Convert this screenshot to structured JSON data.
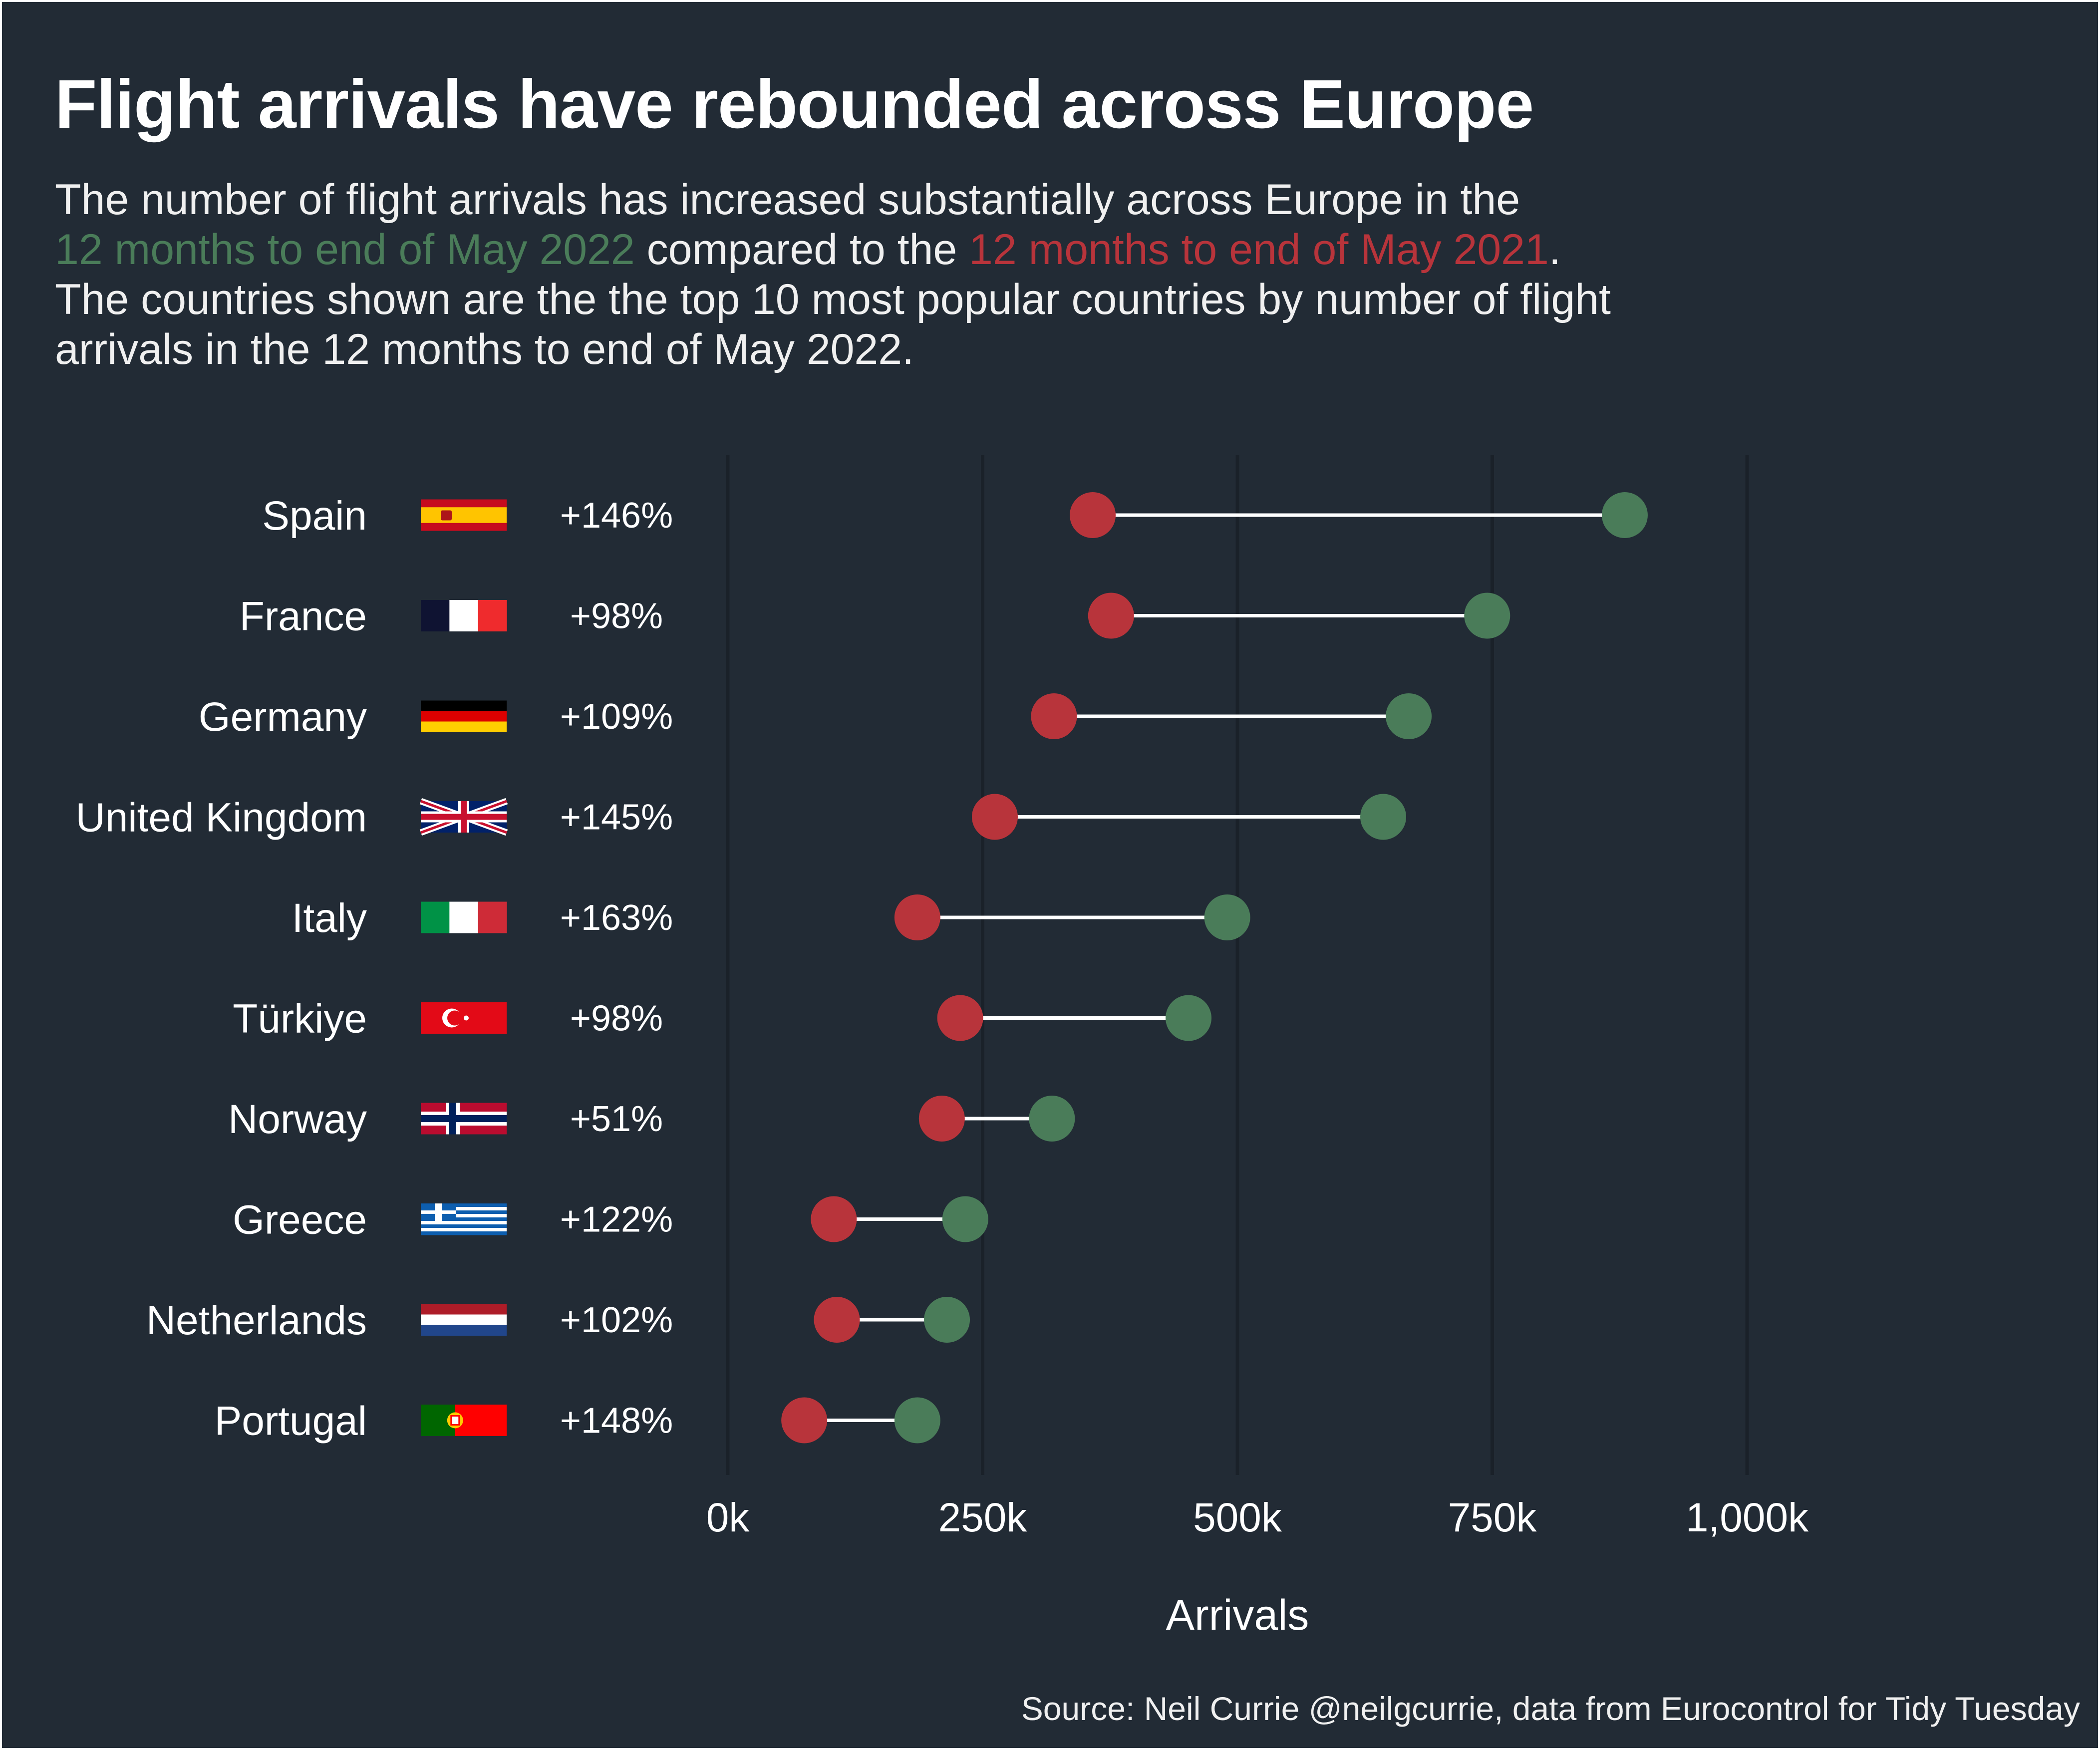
{
  "title": "Flight arrivals have rebounded across Europe",
  "subtitle": {
    "line1": "The number of flight arrivals has increased substantially across Europe in the",
    "period_2022": "12 months to end of May 2022",
    "compared": " compared to the ",
    "period_2021": "12 months to end of May 2021",
    "period_end": ".",
    "line3": "The countries shown are the the top 10 most popular countries by number of flight arrivals in the 12 months to end of May 2022."
  },
  "source": "Source: Neil Currie @neilgcurrie, data from Eurocontrol for Tidy Tuesday",
  "colors": {
    "background": "#222b35",
    "arrivals_2022": "#4a7c59",
    "arrivals_2021": "#b8343b",
    "connector": "#ffffff",
    "grid": "#1a2129"
  },
  "chart_data": {
    "type": "dumbbell",
    "xlabel": "Arrivals",
    "xlim": [
      0,
      1000000
    ],
    "xticks": [
      0,
      250000,
      500000,
      750000,
      1000000
    ],
    "xtick_labels": [
      "0k",
      "250k",
      "500k",
      "750k",
      "1,000k"
    ],
    "grid": "vertical",
    "series": [
      {
        "name": "12 months to end of May 2021",
        "color": "#b8343b"
      },
      {
        "name": "12 months to end of May 2022",
        "color": "#4a7c59"
      }
    ],
    "rows": [
      {
        "country": "Spain",
        "flag": "flag-spain",
        "change": "+146%",
        "y2021": 358000,
        "y2022": 880000
      },
      {
        "country": "France",
        "flag": "flag-france",
        "change": "+98%",
        "y2021": 376000,
        "y2022": 745000
      },
      {
        "country": "Germany",
        "flag": "flag-germany",
        "change": "+109%",
        "y2021": 320000,
        "y2022": 668000
      },
      {
        "country": "United Kingdom",
        "flag": "flag-united-kingdom",
        "change": "+145%",
        "y2021": 262000,
        "y2022": 643000
      },
      {
        "country": "Italy",
        "flag": "flag-italy",
        "change": "+163%",
        "y2021": 186000,
        "y2022": 490000
      },
      {
        "country": "Türkiye",
        "flag": "flag-turkiye",
        "change": "+98%",
        "y2021": 228000,
        "y2022": 452000
      },
      {
        "country": "Norway",
        "flag": "flag-norway",
        "change": "+51%",
        "y2021": 210000,
        "y2022": 318000
      },
      {
        "country": "Greece",
        "flag": "flag-greece",
        "change": "+122%",
        "y2021": 104000,
        "y2022": 233000
      },
      {
        "country": "Netherlands",
        "flag": "flag-netherlands",
        "change": "+102%",
        "y2021": 107000,
        "y2022": 215000
      },
      {
        "country": "Portugal",
        "flag": "flag-portugal",
        "change": "+148%",
        "y2021": 75000,
        "y2022": 186000
      }
    ]
  }
}
